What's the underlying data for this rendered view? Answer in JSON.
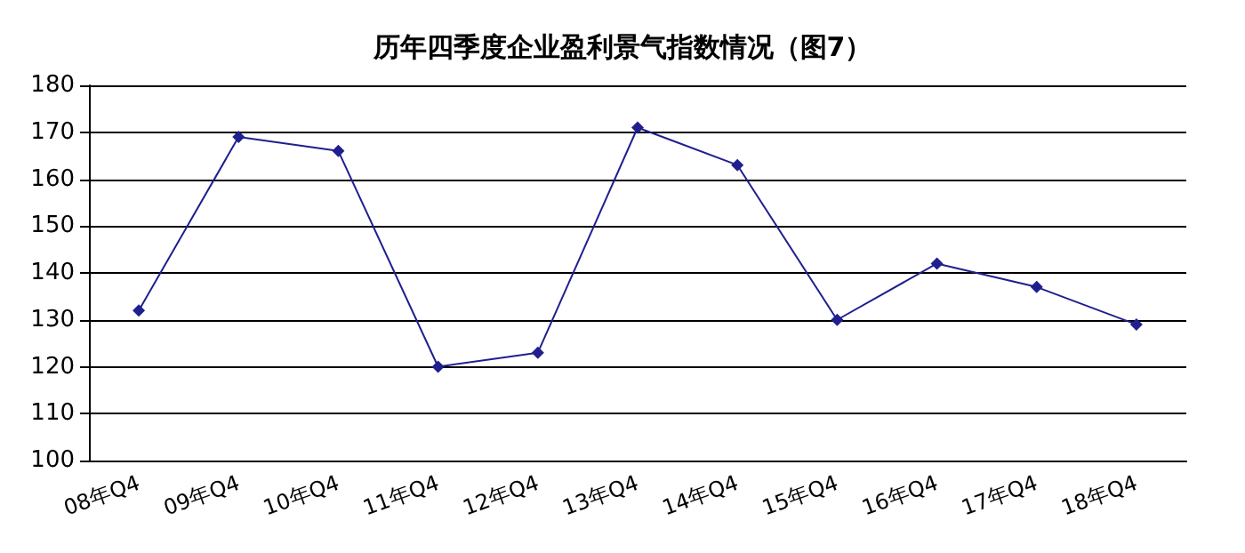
{
  "chart_data": {
    "type": "line",
    "title": "历年四季度企业盈利景气指数情况（图7）",
    "categories": [
      "08年Q4",
      "09年Q4",
      "10年Q4",
      "11年Q4",
      "12年Q4",
      "13年Q4",
      "14年Q4",
      "15年Q4",
      "16年Q4",
      "17年Q4",
      "18年Q4"
    ],
    "series": [
      {
        "color": "#1f1f8f",
        "values": [
          132,
          169,
          166,
          120,
          123,
          171,
          163,
          130,
          142,
          137,
          129
        ]
      }
    ],
    "ylim": [
      100,
      180
    ],
    "yticks": [
      100,
      110,
      120,
      130,
      140,
      150,
      160,
      170,
      180
    ],
    "grid": "y",
    "marker": "diamond",
    "line_style": "solid"
  }
}
